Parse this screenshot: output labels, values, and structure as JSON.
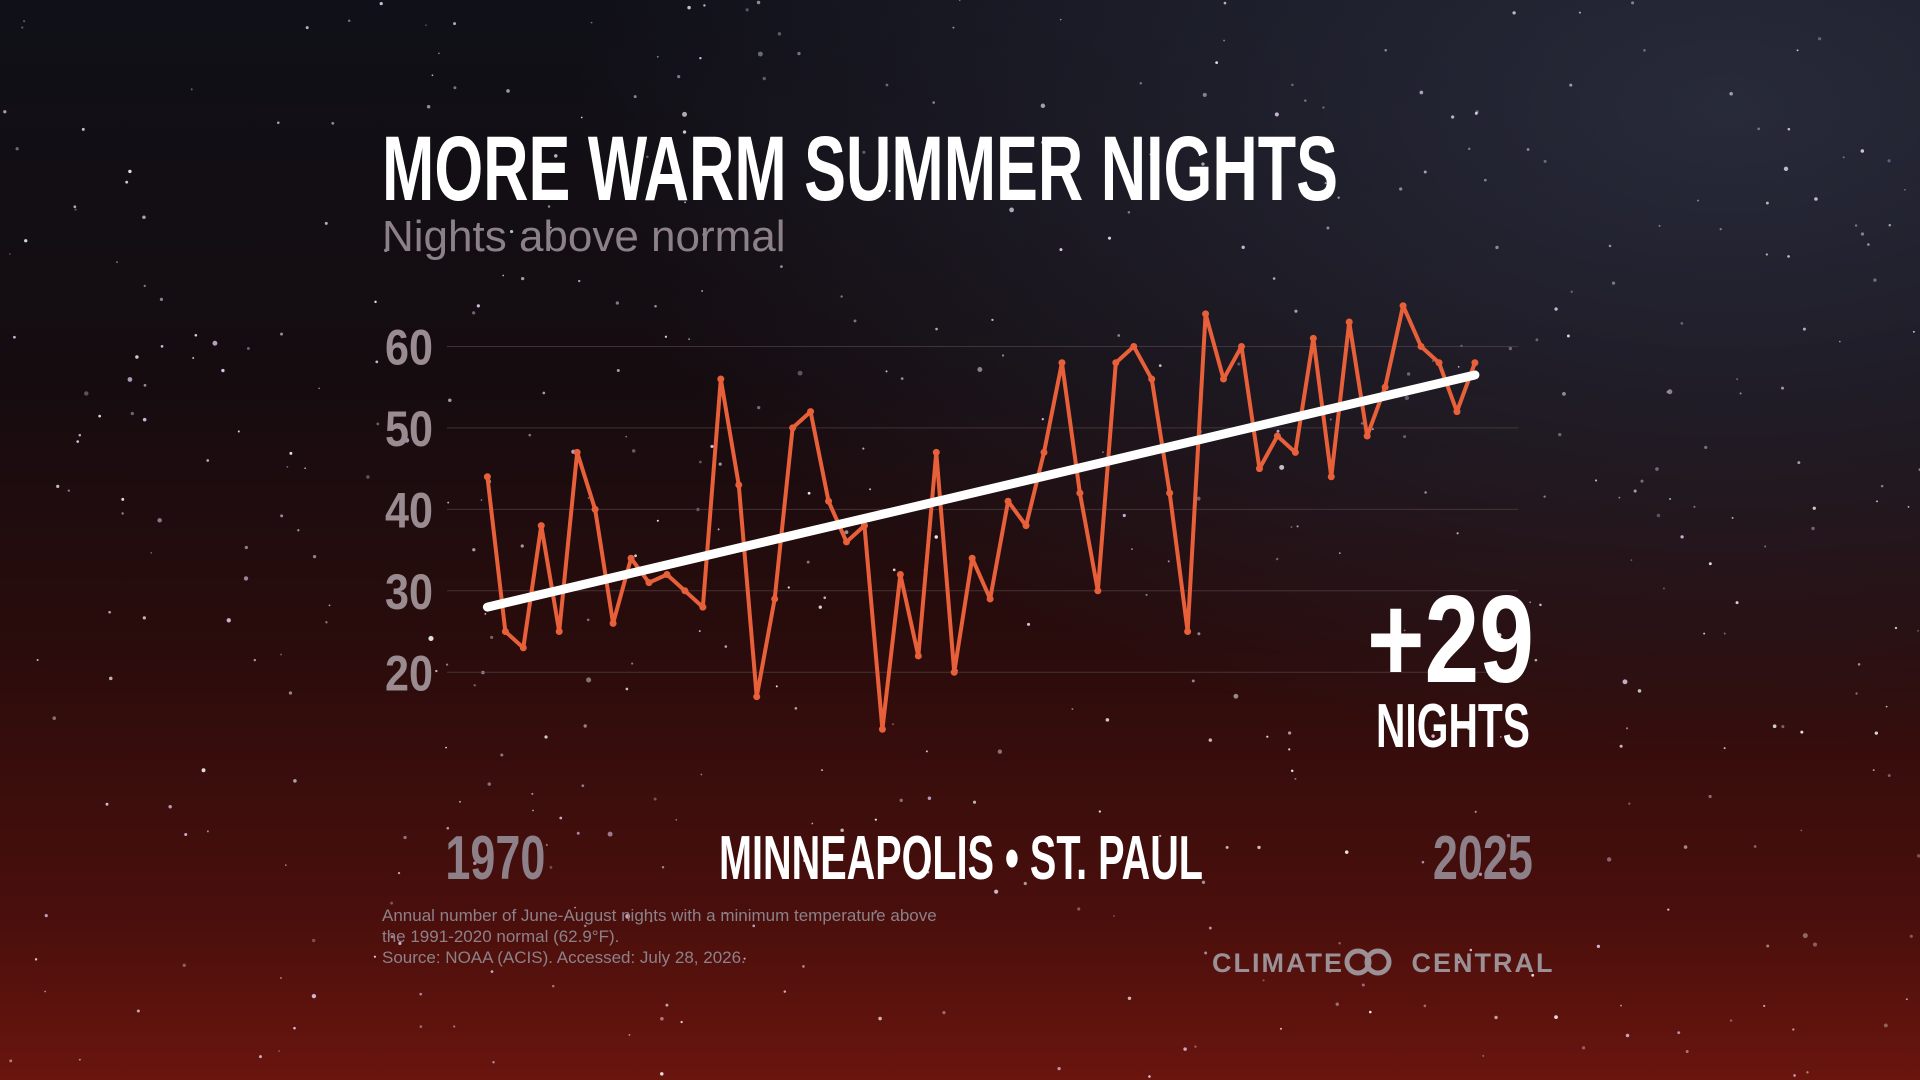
{
  "chart_data": {
    "type": "line",
    "title": "MORE WARM SUMMER NIGHTS",
    "subtitle": "Nights above normal",
    "location": "MINNEAPOLIS • ST. PAUL",
    "annotation": {
      "value": "+29",
      "unit": "NIGHTS"
    },
    "note": [
      "Annual number of June-August nights with a minimum temperature above",
      "the 1991-2020 normal (62.9°F).",
      "Source: NOAA (ACIS). Accessed: July 28, 2026."
    ],
    "brand": "CLIMATE CENTRAL",
    "x": [
      1970,
      1971,
      1972,
      1973,
      1974,
      1975,
      1976,
      1977,
      1978,
      1979,
      1980,
      1981,
      1982,
      1983,
      1984,
      1985,
      1986,
      1987,
      1988,
      1989,
      1990,
      1991,
      1992,
      1993,
      1994,
      1995,
      1996,
      1997,
      1998,
      1999,
      2000,
      2001,
      2002,
      2003,
      2004,
      2005,
      2006,
      2007,
      2008,
      2009,
      2010,
      2011,
      2012,
      2013,
      2014,
      2015,
      2016,
      2017,
      2018,
      2019,
      2020,
      2021,
      2022,
      2023,
      2024,
      2025
    ],
    "values": [
      44,
      25,
      23,
      38,
      25,
      47,
      40,
      26,
      34,
      31,
      32,
      30,
      28,
      56,
      43,
      17,
      29,
      50,
      52,
      41,
      36,
      38,
      13,
      32,
      22,
      47,
      20,
      34,
      29,
      41,
      38,
      47,
      58,
      42,
      30,
      58,
      60,
      56,
      42,
      25,
      64,
      56,
      60,
      45,
      49,
      47,
      61,
      44,
      63,
      49,
      55,
      65,
      60,
      58,
      52,
      58
    ],
    "color": "#e8603a",
    "trend": {
      "x": [
        1970,
        2025
      ],
      "values": [
        28,
        56.5
      ],
      "color": "#ffffff"
    },
    "xlim": [
      1967.75,
      2027.4
    ],
    "xticks": [
      1970,
      2025
    ],
    "ylim": [
      10,
      68
    ],
    "yticks": [
      20,
      30,
      40,
      50,
      60
    ],
    "grid": true
  }
}
